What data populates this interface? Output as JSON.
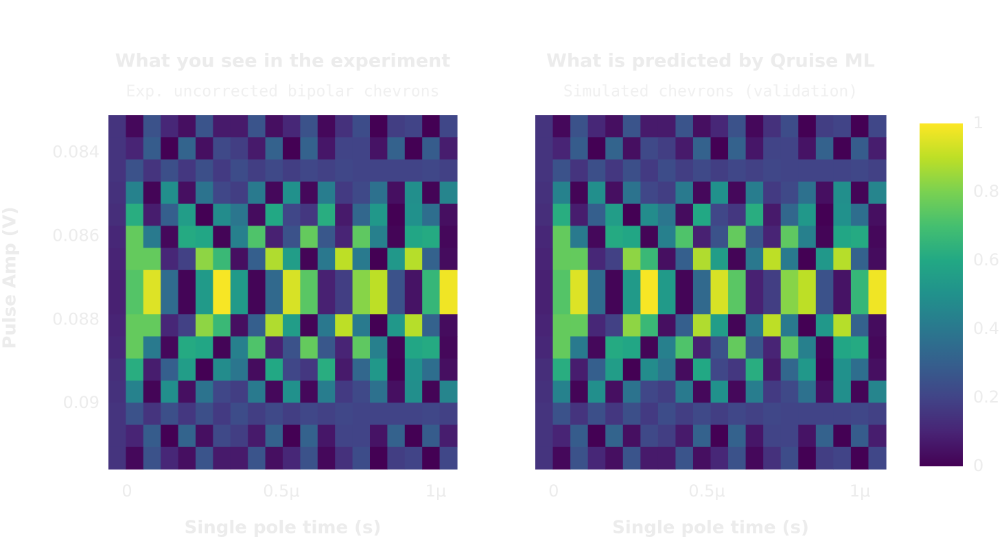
{
  "chart_data": [
    {
      "type": "heatmap",
      "title": "What you see in the experiment",
      "subtitle": "Exp. uncorrected bipolar chevrons",
      "xlabel": "Single pole time (s)",
      "ylabel": "Pulse Amp (V)",
      "colormap": "viridis",
      "xlim": [
        -6e-08,
        1.069e-06
      ],
      "ylim": [
        0.08311,
        0.09157
      ],
      "y_inverted": true,
      "xticks": [
        0,
        {
          "value": 5e-07,
          "label": "0.5μ"
        },
        {
          "value": 1e-06,
          "label": "1μ"
        }
      ],
      "yticks": [
        0.084,
        {
          "value": 0.086,
          "label": "0.086"
        },
        {
          "value": 0.088,
          "label": "0.088"
        },
        0.09
      ],
      "zlim": [
        0,
        1
      ],
      "z": [
        [
          0.15,
          0.02,
          0.25,
          0.11,
          0.04,
          0.26,
          0.07,
          0.07,
          0.26,
          0.04,
          0.11,
          0.25,
          0.02,
          0.14,
          0.23,
          0,
          0.18,
          0.2,
          0,
          0.21
        ],
        [
          0.15,
          0.1,
          0.29,
          0,
          0.32,
          0.04,
          0.22,
          0.18,
          0.07,
          0.31,
          0,
          0.31,
          0.06,
          0.2,
          0.2,
          0.05,
          0.31,
          0,
          0.29,
          0.08
        ],
        [
          0.15,
          0.25,
          0.15,
          0.24,
          0.16,
          0.24,
          0.17,
          0.23,
          0.18,
          0.22,
          0.18,
          0.21,
          0.19,
          0.21,
          0.2,
          0.2,
          0.2,
          0.2,
          0.21,
          0.19
        ],
        [
          0.14,
          0.44,
          0.01,
          0.49,
          0.04,
          0.38,
          0.21,
          0.18,
          0.41,
          0.02,
          0.5,
          0.02,
          0.42,
          0.17,
          0.22,
          0.37,
          0.04,
          0.49,
          0.01,
          0.45
        ],
        [
          0.13,
          0.62,
          0.08,
          0.3,
          0.55,
          0,
          0.48,
          0.39,
          0.03,
          0.6,
          0.21,
          0.16,
          0.62,
          0.07,
          0.33,
          0.53,
          0,
          0.5,
          0.36,
          0.04
        ],
        [
          0.11,
          0.76,
          0.41,
          0.02,
          0.61,
          0.59,
          0.01,
          0.43,
          0.72,
          0.09,
          0.25,
          0.76,
          0.27,
          0.1,
          0.75,
          0.43,
          0.01,
          0.59,
          0.61,
          0.02
        ],
        [
          0.1,
          0.76,
          0.76,
          0.11,
          0.19,
          0.83,
          0.67,
          0.04,
          0.3,
          0.88,
          0.55,
          0.01,
          0.4,
          0.9,
          0.41,
          0,
          0.53,
          0.89,
          0.31,
          0.03
        ],
        [
          0.09,
          0.73,
          0.95,
          0.35,
          0.01,
          0.54,
          0.99,
          0.54,
          0.01,
          0.34,
          0.94,
          0.74,
          0.09,
          0.18,
          0.82,
          0.9,
          0.25,
          0.05,
          0.66,
          0.98
        ],
        [
          0.09,
          0.73,
          0.95,
          0.35,
          0.01,
          0.54,
          0.99,
          0.54,
          0.01,
          0.34,
          0.94,
          0.74,
          0.09,
          0.18,
          0.82,
          0.9,
          0.25,
          0.05,
          0.66,
          0.98
        ],
        [
          0.1,
          0.76,
          0.76,
          0.11,
          0.19,
          0.83,
          0.67,
          0.04,
          0.3,
          0.88,
          0.55,
          0.01,
          0.4,
          0.9,
          0.41,
          0,
          0.53,
          0.89,
          0.31,
          0.03
        ],
        [
          0.11,
          0.76,
          0.41,
          0.02,
          0.61,
          0.59,
          0.01,
          0.43,
          0.72,
          0.09,
          0.25,
          0.76,
          0.27,
          0.1,
          0.75,
          0.43,
          0.01,
          0.59,
          0.61,
          0.02
        ],
        [
          0.13,
          0.62,
          0.08,
          0.3,
          0.55,
          0,
          0.48,
          0.39,
          0.03,
          0.6,
          0.21,
          0.16,
          0.62,
          0.07,
          0.33,
          0.53,
          0,
          0.5,
          0.36,
          0.04
        ],
        [
          0.14,
          0.44,
          0.01,
          0.49,
          0.04,
          0.38,
          0.21,
          0.18,
          0.41,
          0.02,
          0.5,
          0.02,
          0.42,
          0.17,
          0.22,
          0.37,
          0.04,
          0.49,
          0.01,
          0.45
        ],
        [
          0.15,
          0.25,
          0.15,
          0.24,
          0.16,
          0.24,
          0.17,
          0.23,
          0.18,
          0.22,
          0.18,
          0.21,
          0.19,
          0.21,
          0.2,
          0.2,
          0.2,
          0.2,
          0.21,
          0.19
        ],
        [
          0.15,
          0.1,
          0.29,
          0,
          0.32,
          0.04,
          0.22,
          0.18,
          0.07,
          0.31,
          0,
          0.31,
          0.06,
          0.2,
          0.2,
          0.05,
          0.31,
          0,
          0.29,
          0.08
        ],
        [
          0.15,
          0.02,
          0.25,
          0.11,
          0.04,
          0.26,
          0.07,
          0.07,
          0.26,
          0.04,
          0.11,
          0.25,
          0.02,
          0.14,
          0.23,
          0,
          0.18,
          0.2,
          0,
          0.21
        ]
      ]
    },
    {
      "type": "heatmap",
      "title": "What is predicted by Qruise ML",
      "subtitle": "Simulated chevrons (validation)",
      "xlabel": "Single pole time (s)",
      "colormap": "viridis",
      "xlim": [
        -6e-08,
        1.085e-06
      ],
      "ylim": [
        0.08311,
        0.09157
      ],
      "y_inverted": true,
      "xticks": [
        0,
        {
          "value": 5e-07,
          "label": "0.5μ"
        },
        {
          "value": 1e-06,
          "label": "1μ"
        }
      ],
      "zlim": [
        0,
        1
      ],
      "colorbar": {
        "ticks": [
          0,
          0.2,
          0.4,
          0.6,
          0.8,
          1
        ]
      },
      "z": [
        [
          0.15,
          0.02,
          0.25,
          0.11,
          0.04,
          0.26,
          0.07,
          0.07,
          0.26,
          0.04,
          0.11,
          0.25,
          0.02,
          0.14,
          0.23,
          0,
          0.18,
          0.2,
          0,
          0.21
        ],
        [
          0.15,
          0.1,
          0.29,
          0,
          0.32,
          0.04,
          0.22,
          0.18,
          0.07,
          0.31,
          0,
          0.31,
          0.06,
          0.2,
          0.2,
          0.05,
          0.31,
          0,
          0.29,
          0.08
        ],
        [
          0.15,
          0.25,
          0.15,
          0.24,
          0.16,
          0.24,
          0.17,
          0.23,
          0.18,
          0.22,
          0.18,
          0.21,
          0.19,
          0.21,
          0.2,
          0.2,
          0.2,
          0.2,
          0.21,
          0.19
        ],
        [
          0.14,
          0.44,
          0.01,
          0.49,
          0.04,
          0.38,
          0.21,
          0.18,
          0.41,
          0.02,
          0.5,
          0.02,
          0.42,
          0.17,
          0.22,
          0.37,
          0.04,
          0.49,
          0.01,
          0.45
        ],
        [
          0.13,
          0.62,
          0.08,
          0.3,
          0.55,
          0,
          0.48,
          0.39,
          0.03,
          0.6,
          0.21,
          0.16,
          0.62,
          0.07,
          0.33,
          0.53,
          0,
          0.5,
          0.36,
          0.04
        ],
        [
          0.11,
          0.76,
          0.41,
          0.02,
          0.61,
          0.59,
          0.01,
          0.43,
          0.72,
          0.09,
          0.25,
          0.76,
          0.27,
          0.1,
          0.75,
          0.43,
          0.01,
          0.59,
          0.61,
          0.02
        ],
        [
          0.1,
          0.76,
          0.76,
          0.11,
          0.19,
          0.83,
          0.67,
          0.04,
          0.3,
          0.88,
          0.55,
          0.01,
          0.4,
          0.9,
          0.41,
          0,
          0.53,
          0.89,
          0.31,
          0.03
        ],
        [
          0.09,
          0.73,
          0.95,
          0.35,
          0.01,
          0.54,
          0.99,
          0.54,
          0.01,
          0.34,
          0.94,
          0.74,
          0.09,
          0.18,
          0.82,
          0.9,
          0.25,
          0.05,
          0.66,
          0.98
        ],
        [
          0.09,
          0.73,
          0.95,
          0.35,
          0.01,
          0.54,
          0.99,
          0.54,
          0.01,
          0.34,
          0.94,
          0.74,
          0.09,
          0.18,
          0.82,
          0.9,
          0.25,
          0.05,
          0.66,
          0.98
        ],
        [
          0.1,
          0.76,
          0.76,
          0.11,
          0.19,
          0.83,
          0.67,
          0.04,
          0.3,
          0.88,
          0.55,
          0.01,
          0.4,
          0.9,
          0.41,
          0,
          0.53,
          0.89,
          0.31,
          0.03
        ],
        [
          0.11,
          0.76,
          0.41,
          0.02,
          0.61,
          0.59,
          0.01,
          0.43,
          0.72,
          0.09,
          0.25,
          0.76,
          0.27,
          0.1,
          0.75,
          0.43,
          0.01,
          0.59,
          0.61,
          0.02
        ],
        [
          0.13,
          0.62,
          0.08,
          0.3,
          0.55,
          0,
          0.48,
          0.39,
          0.03,
          0.6,
          0.21,
          0.16,
          0.62,
          0.07,
          0.33,
          0.53,
          0,
          0.5,
          0.36,
          0.04
        ],
        [
          0.14,
          0.44,
          0.01,
          0.49,
          0.04,
          0.38,
          0.21,
          0.18,
          0.41,
          0.02,
          0.5,
          0.02,
          0.42,
          0.17,
          0.22,
          0.37,
          0.04,
          0.49,
          0.01,
          0.45
        ],
        [
          0.15,
          0.25,
          0.15,
          0.24,
          0.16,
          0.24,
          0.17,
          0.23,
          0.18,
          0.22,
          0.18,
          0.21,
          0.19,
          0.21,
          0.2,
          0.2,
          0.2,
          0.2,
          0.21,
          0.19
        ],
        [
          0.15,
          0.1,
          0.29,
          0,
          0.32,
          0.04,
          0.22,
          0.18,
          0.07,
          0.31,
          0,
          0.31,
          0.06,
          0.2,
          0.2,
          0.05,
          0.31,
          0,
          0.29,
          0.08
        ],
        [
          0.15,
          0.02,
          0.25,
          0.11,
          0.04,
          0.26,
          0.07,
          0.07,
          0.26,
          0.04,
          0.11,
          0.25,
          0.02,
          0.14,
          0.23,
          0,
          0.18,
          0.2,
          0,
          0.21
        ]
      ]
    }
  ]
}
